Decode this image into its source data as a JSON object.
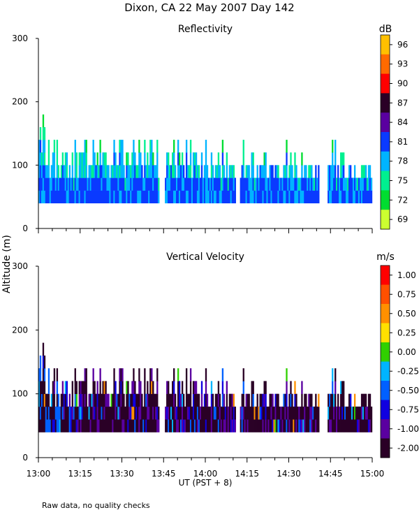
{
  "page_title": "Dixon, CA 22 May 2007  Day 142",
  "y_axis_label": "Altitude (m)",
  "x_axis_label": "UT   (PST + 8)",
  "footnote": "Raw data, no quality checks",
  "chart_data": [
    {
      "type": "heatmap",
      "title": "Reflectivity",
      "colorbar_unit": "dB",
      "colorbar_ticks": [
        "96",
        "93",
        "90",
        "87",
        "84",
        "81",
        "78",
        "75",
        "72",
        "69"
      ],
      "colorbar_colors": [
        "#ffc000",
        "#ff6a00",
        "#ff0000",
        "#2a0026",
        "#5a00a0",
        "#0a3aff",
        "#00b4ff",
        "#00f090",
        "#00dd30",
        "#ccff30"
      ],
      "ylim": [
        0,
        300
      ],
      "yticks": [
        "300",
        "200",
        "100",
        "0"
      ],
      "ytick_values": [
        300,
        200,
        100,
        0
      ],
      "x_start_minutes": 0,
      "x_end_minutes": 120,
      "x_tick_labels": [
        "13:00",
        "13:15",
        "13:30",
        "13:45",
        "14:00",
        "14:15",
        "14:30",
        "14:45",
        "15:00"
      ],
      "data_base_altitude_m": 40,
      "typical_top_altitude_m": [
        80,
        140
      ],
      "max_echo_altitude_m": 180,
      "dominant_values_db": [
        75,
        78,
        81
      ]
    },
    {
      "type": "heatmap",
      "title": "Vertical Velocity",
      "colorbar_unit": "m/s",
      "colorbar_ticks": [
        "1.00",
        "0.75",
        "0.50",
        "0.25",
        "0.00",
        "-0.25",
        "-0.50",
        "-0.75",
        "-1.00",
        "-2.00"
      ],
      "colorbar_colors": [
        "#ff0000",
        "#ff5000",
        "#ff9000",
        "#ffe000",
        "#30d000",
        "#00b4ff",
        "#0060ff",
        "#1000e0",
        "#5a00a0",
        "#2a0026"
      ],
      "ylim": [
        0,
        300
      ],
      "yticks": [
        "300",
        "200",
        "100",
        "0"
      ],
      "ytick_values": [
        300,
        200,
        100,
        0
      ],
      "x_start_minutes": 0,
      "x_end_minutes": 120,
      "x_tick_labels": [
        "13:00",
        "13:15",
        "13:30",
        "13:45",
        "14:00",
        "14:15",
        "14:30",
        "14:45",
        "15:00"
      ],
      "data_base_altitude_m": 40,
      "typical_top_altitude_m": [
        80,
        140
      ],
      "max_echo_altitude_m": 180,
      "dominant_values_ms": [
        -2.0,
        -1.0,
        -0.75
      ]
    }
  ]
}
